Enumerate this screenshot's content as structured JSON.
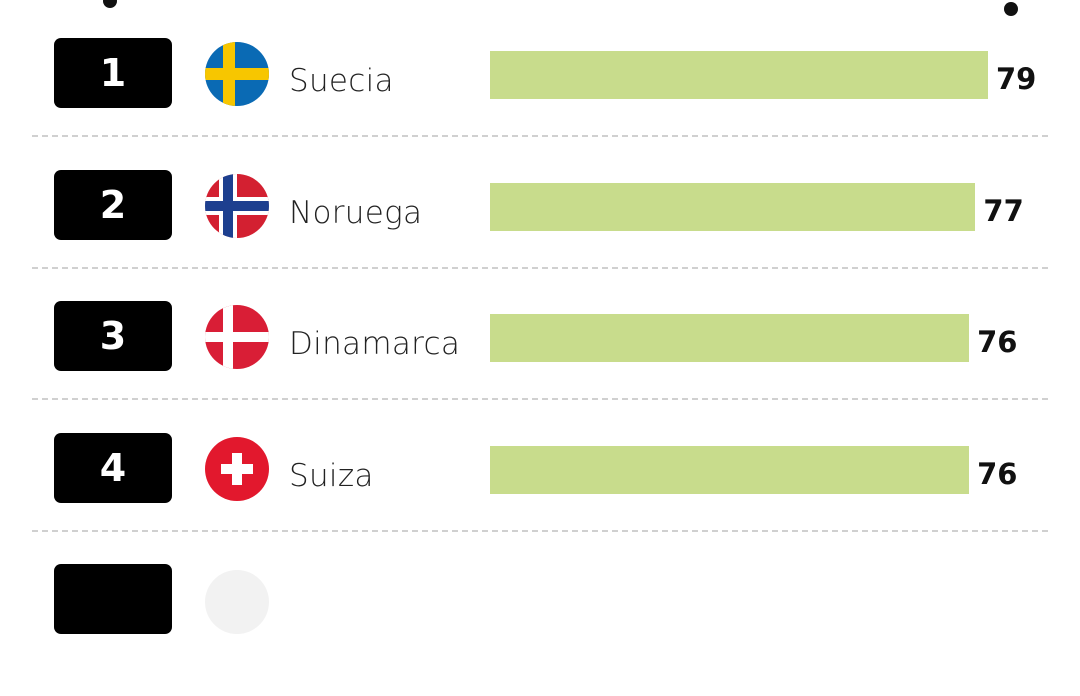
{
  "chart_data": {
    "type": "bar",
    "orientation": "horizontal",
    "xlim": [
      0,
      79
    ],
    "rows": [
      {
        "rank": "1",
        "country": "Suecia",
        "value": 79,
        "flag": "sweden-flag-icon"
      },
      {
        "rank": "2",
        "country": "Noruega",
        "value": 77,
        "flag": "norway-flag-icon"
      },
      {
        "rank": "3",
        "country": "Dinamarca",
        "value": 76,
        "flag": "denmark-flag-icon"
      },
      {
        "rank": "4",
        "country": "Suiza",
        "value": 76,
        "flag": "switzerland-flag-icon"
      }
    ],
    "partial_next_row": {
      "flag": "partial-flag-icon"
    },
    "bar_color": "#c8dc8c"
  },
  "colors": {
    "rank_box": "#000000",
    "rank_text": "#ffffff",
    "separator": "#d0d0d0"
  }
}
